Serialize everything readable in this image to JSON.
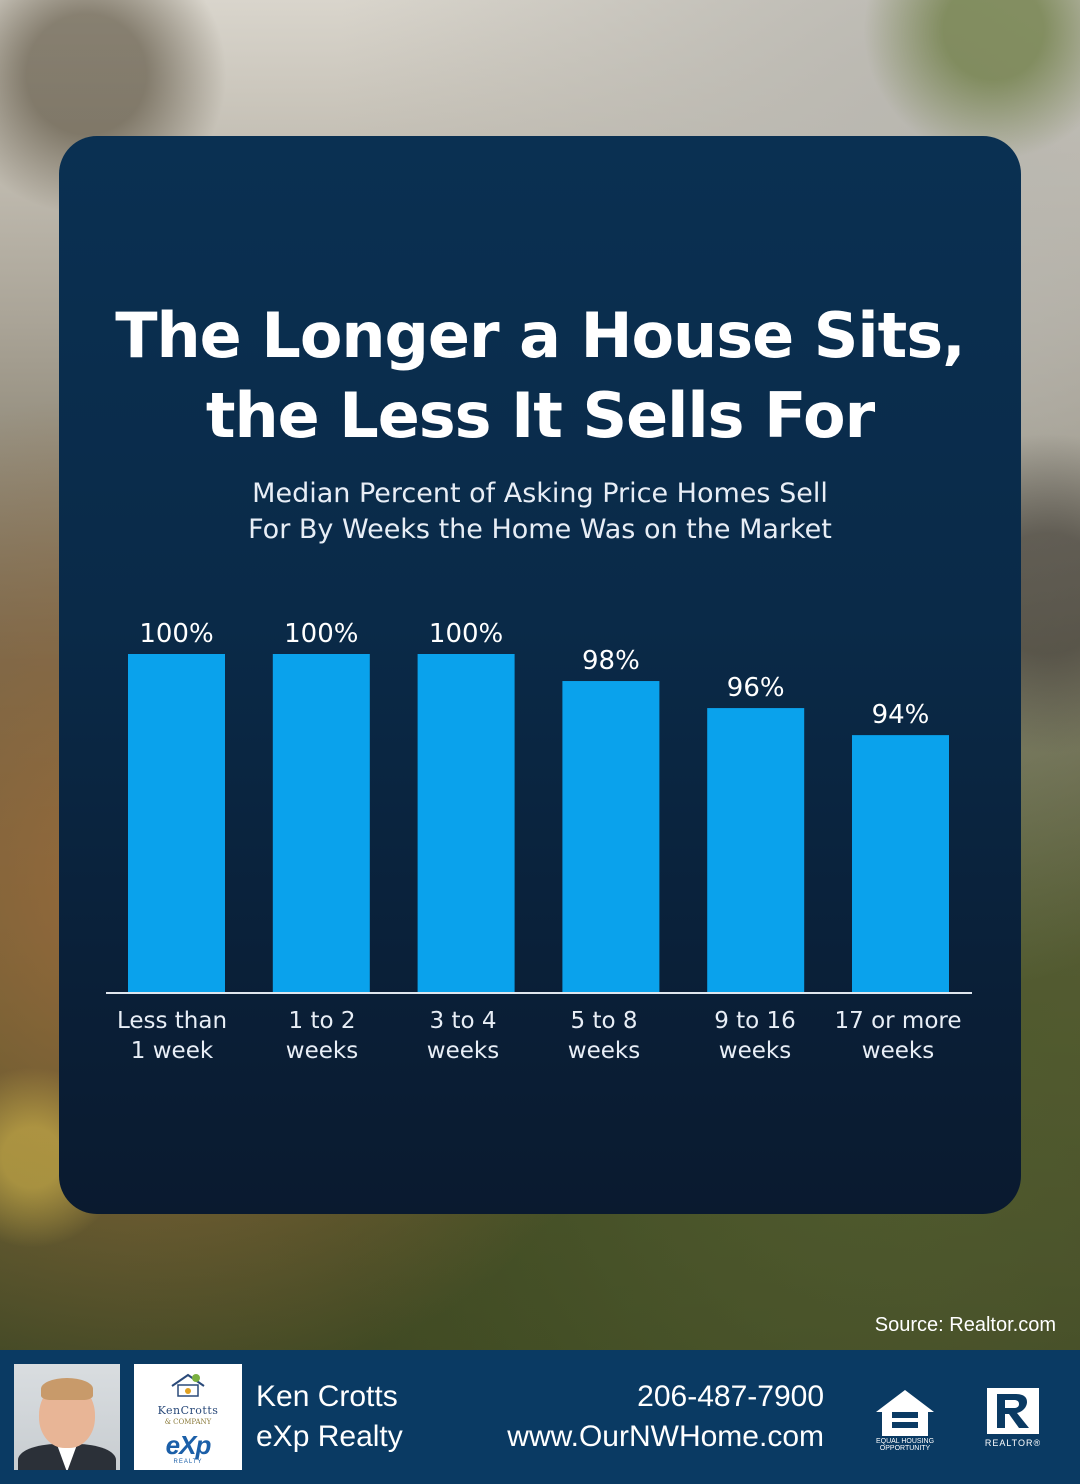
{
  "title_lines": [
    "The Longer a House Sits,",
    "the Less It Sells For"
  ],
  "subtitle_lines": [
    "Median Percent of Asking Price Homes Sell",
    "For By Weeks the Home Was on the Market"
  ],
  "source": "Source: Realtor.com",
  "chart_data": {
    "type": "bar",
    "title": "The Longer a House Sits, the Less It Sells For",
    "subtitle": "Median Percent of Asking Price Homes Sell For By Weeks the Home Was on the Market",
    "categories": [
      [
        "Less than",
        "1 week"
      ],
      [
        "1 to 2",
        "weeks"
      ],
      [
        "3 to 4",
        "weeks"
      ],
      [
        "5 to 8",
        "weeks"
      ],
      [
        "9 to 16",
        "weeks"
      ],
      [
        "17 or more",
        "weeks"
      ]
    ],
    "values": [
      100,
      100,
      100,
      98,
      96,
      94
    ],
    "value_labels": [
      "100%",
      "100%",
      "100%",
      "98%",
      "96%",
      "94%"
    ],
    "ylim": [
      75,
      100
    ],
    "bar_color": "#0aa2ec",
    "grid": false,
    "legend": "none"
  },
  "footer": {
    "name": "Ken Crotts",
    "company": "eXp Realty",
    "phone": "206-487-7900",
    "website": "www.OurNWHome.com",
    "logo_brand": "KenCrotts",
    "logo_sub": "& COMPANY",
    "logo_exp": "eXp",
    "logo_realty": "REALTY",
    "eho_label": [
      "EQUAL HOUSING",
      "OPPORTUNITY"
    ],
    "realtor_label": "REALTOR®"
  },
  "colors": {
    "card": "#0a2a48",
    "accent": "#0aa2ec",
    "footer": "#0a3a63"
  }
}
